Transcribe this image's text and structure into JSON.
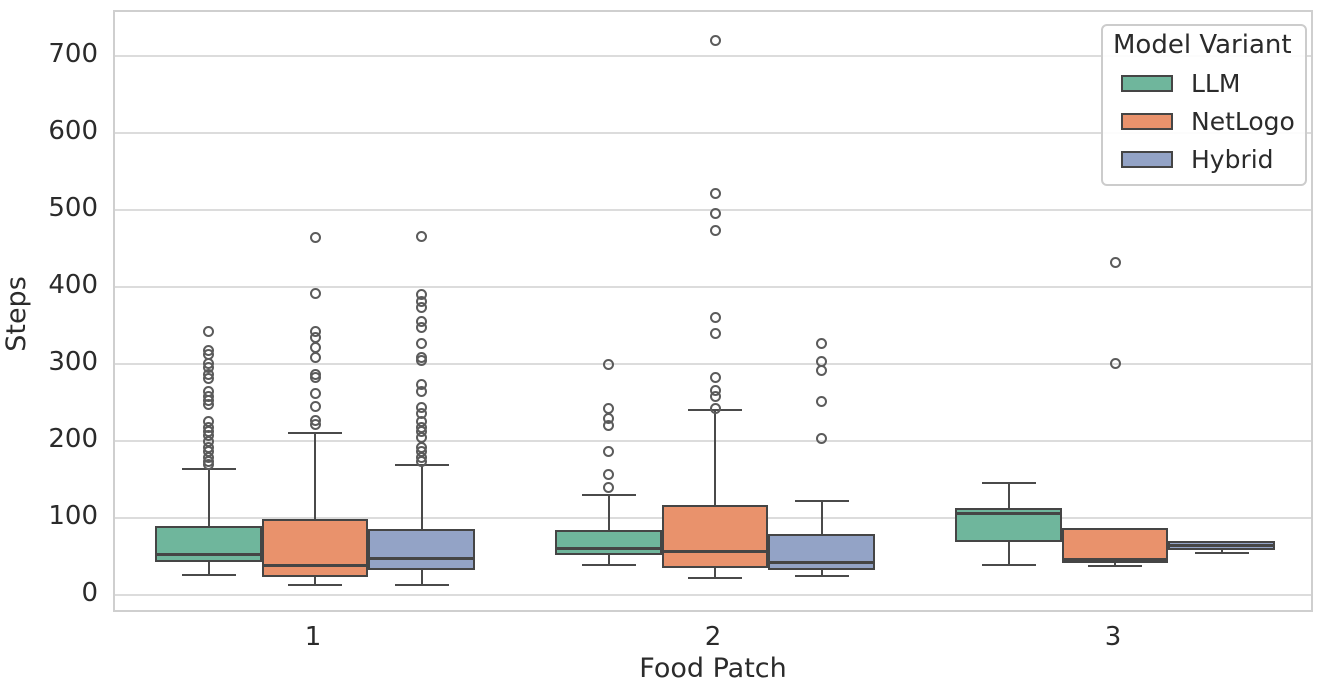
{
  "chart_data": {
    "type": "boxplot",
    "title": "",
    "xlabel": "Food Patch",
    "ylabel": "Steps",
    "categories": [
      "1",
      "2",
      "3"
    ],
    "yticks": [
      0,
      100,
      200,
      300,
      400,
      500,
      600,
      700
    ],
    "ylim": [
      -25,
      758
    ],
    "grid": "horizontal",
    "legend_title": "Model Variant",
    "legend_position": "upper right",
    "text_color": "#2b2b2b",
    "grid_color": "#dcdcdc",
    "box_edge_color": "#454545",
    "series": [
      {
        "name": "LLM",
        "color": "#6fb69c",
        "boxes": [
          {
            "category": "1",
            "whislo": 26,
            "q1": 43,
            "med": 52,
            "q3": 90,
            "whishi": 164,
            "outliers": [
              342,
              318,
              312,
              301,
              295,
              286,
              281,
              264,
              258,
              252,
              247,
              225,
              218,
              212,
              207,
              199,
              192,
              186,
              178,
              173,
              169
            ]
          },
          {
            "category": "2",
            "whislo": 39,
            "q1": 52,
            "med": 61,
            "q3": 84,
            "whishi": 130,
            "outliers": [
              300,
              242,
              229,
              220,
              186,
              156,
              140
            ]
          },
          {
            "category": "3",
            "whislo": 39,
            "q1": 69,
            "med": 106,
            "q3": 113,
            "whishi": 145,
            "outliers": []
          }
        ]
      },
      {
        "name": "NetLogo",
        "color": "#e9926c",
        "boxes": [
          {
            "category": "1",
            "whislo": 13,
            "q1": 24,
            "med": 38,
            "q3": 99,
            "whishi": 211,
            "outliers": [
              464,
              392,
              342,
              335,
              321,
              308,
              287,
              282,
              262,
              245,
              227,
              221
            ]
          },
          {
            "category": "2",
            "whislo": 22,
            "q1": 35,
            "med": 57,
            "q3": 117,
            "whishi": 240,
            "outliers": [
              720,
              521,
              495,
              474,
              360,
              339,
              283,
              266,
              258,
              242
            ]
          },
          {
            "category": "3",
            "whislo": 38,
            "q1": 42,
            "med": 46,
            "q3": 87,
            "whishi": 87,
            "outliers": [
              432,
              301
            ]
          }
        ]
      },
      {
        "name": "Hybrid",
        "color": "#93a3c6",
        "boxes": [
          {
            "category": "1",
            "whislo": 13,
            "q1": 32,
            "med": 47,
            "q3": 86,
            "whishi": 169,
            "outliers": [
              465,
              390,
              381,
              374,
              355,
              347,
              327,
              309,
              304,
              273,
              264,
              244,
              236,
              225,
              218,
              212,
              205,
              192,
              186,
              179,
              173
            ]
          },
          {
            "category": "2",
            "whislo": 25,
            "q1": 32,
            "med": 42,
            "q3": 79,
            "whishi": 122,
            "outliers": [
              326,
              303,
              291,
              251,
              203
            ]
          },
          {
            "category": "3",
            "whislo": 55,
            "q1": 59,
            "med": 64,
            "q3": 70,
            "whishi": 70,
            "outliers": []
          }
        ]
      }
    ]
  }
}
